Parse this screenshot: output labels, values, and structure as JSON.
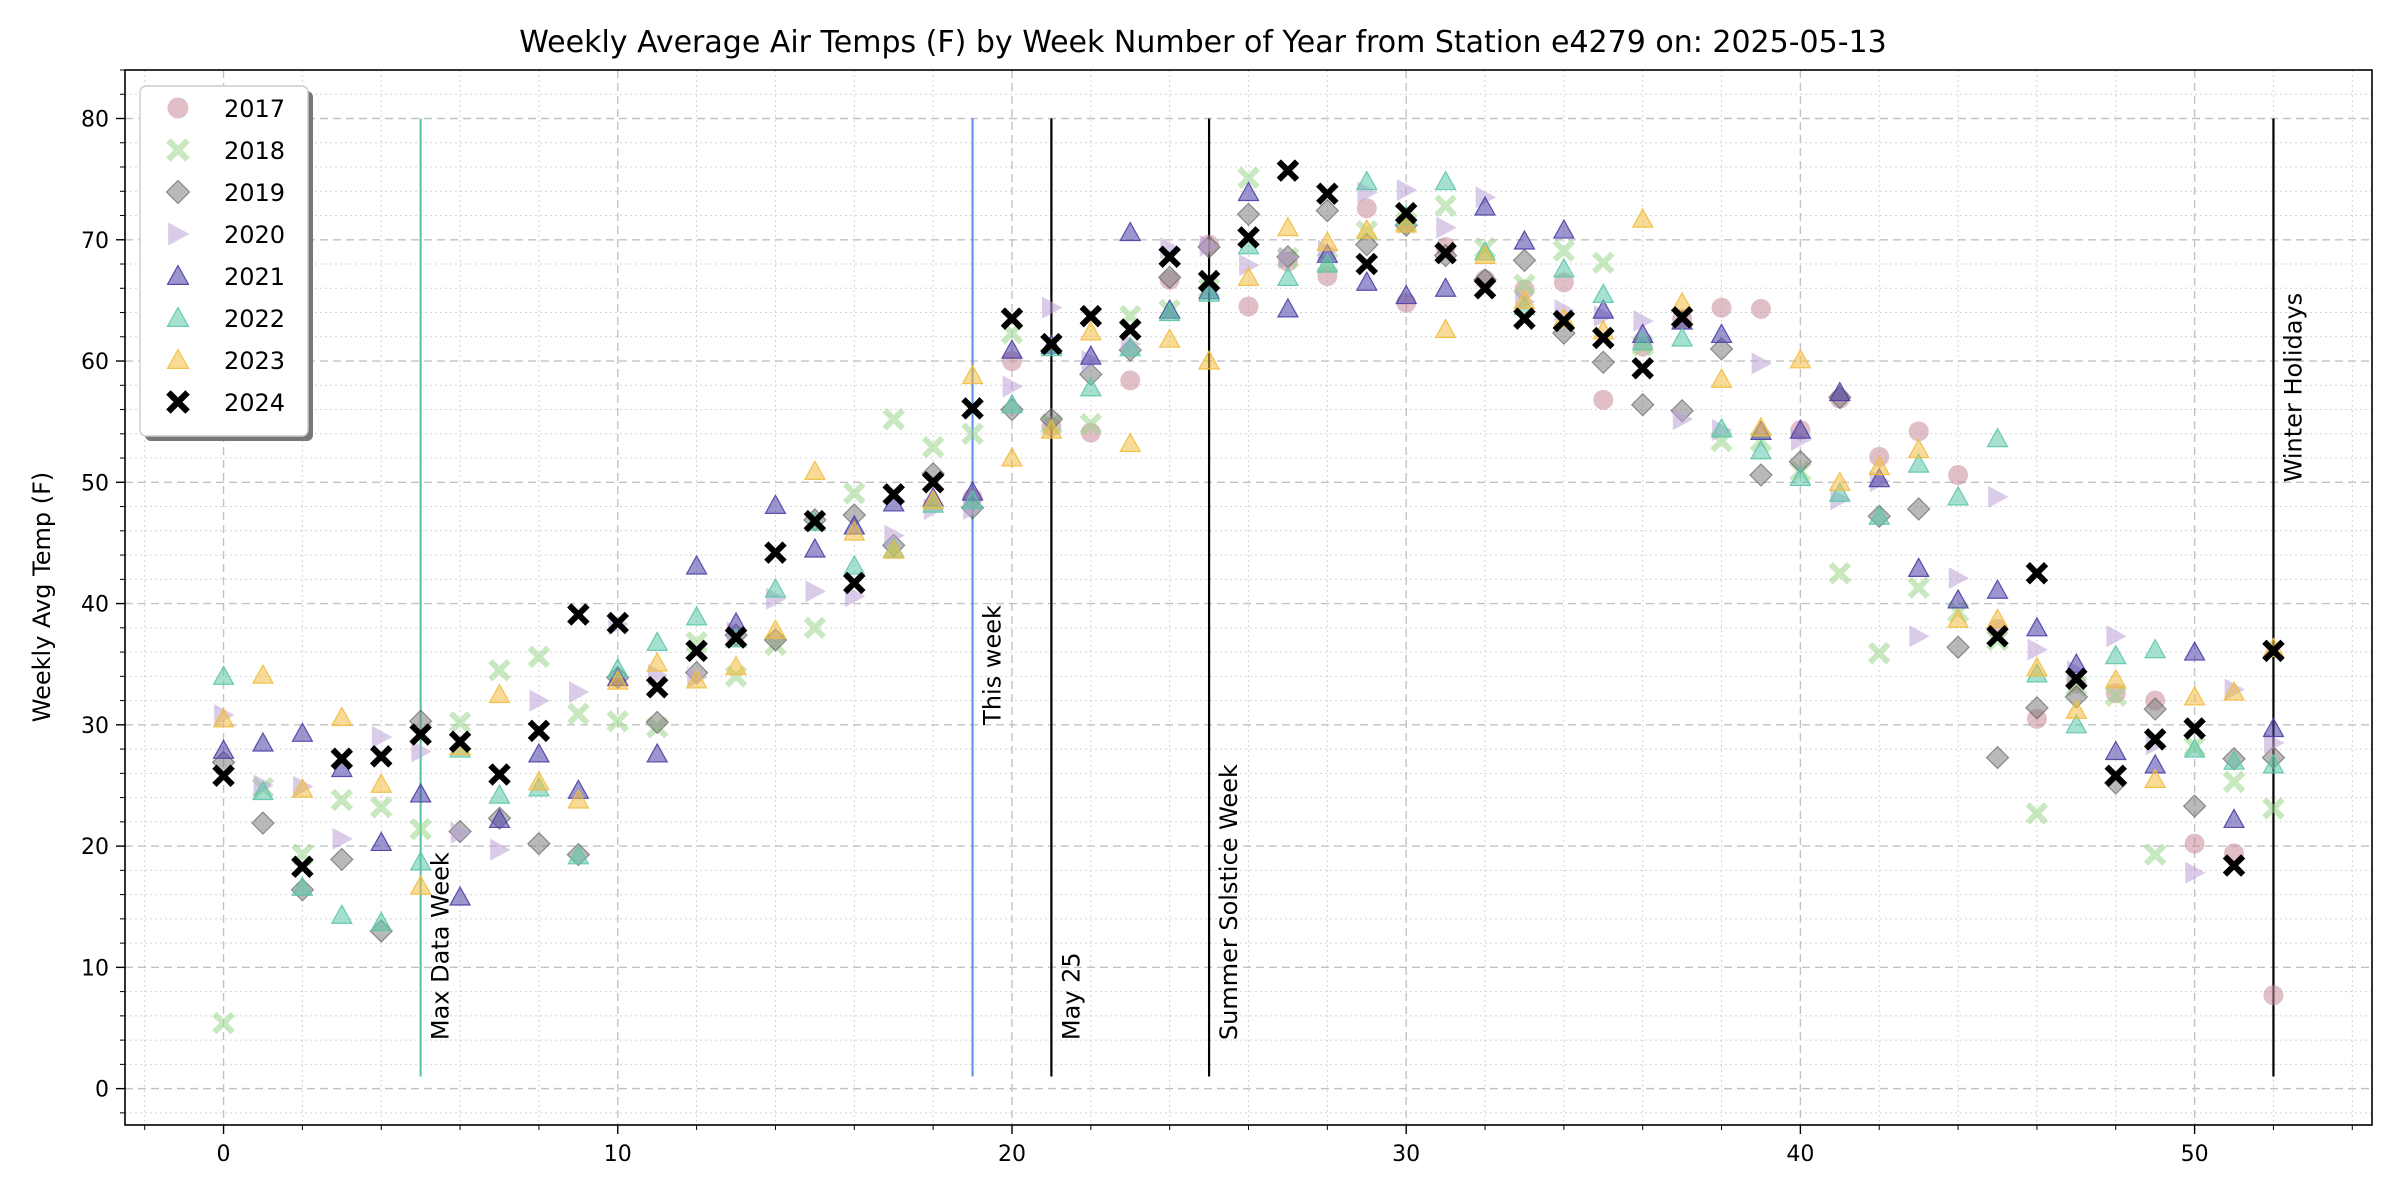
{
  "chart_data": {
    "type": "scatter",
    "title": "Weekly Average Air Temps (F) by Week Number of Year from Station e4279 on: 2025-05-13",
    "xlabel": "",
    "ylabel": "Weekly Avg Temp (F)",
    "xlim": [
      -2.5,
      54.5
    ],
    "ylim": [
      -3,
      84
    ],
    "xticks": [
      0,
      10,
      20,
      30,
      40,
      50
    ],
    "yticks": [
      0,
      10,
      20,
      30,
      40,
      50,
      60,
      70,
      80
    ],
    "grid": true,
    "legend_position": "upper-left",
    "series": [
      {
        "name": "2017",
        "marker": "circle",
        "color": "#c98a97",
        "x": [
          19,
          20,
          21,
          22,
          23,
          24,
          25,
          26,
          27,
          28,
          29,
          30,
          31,
          32,
          33,
          34,
          35,
          36,
          37,
          38,
          39,
          40,
          41,
          42,
          43,
          44,
          45,
          46,
          47,
          48,
          49,
          50,
          51,
          52
        ],
        "y": [
          48.7,
          60.0,
          54.6,
          54.1,
          58.4,
          66.7,
          69.6,
          64.5,
          68.2,
          67.0,
          72.6,
          64.8,
          69.4,
          66.7,
          65.9,
          66.5,
          56.8,
          61.2,
          63.5,
          64.4,
          64.3,
          54.3,
          56.9,
          52.1,
          54.2,
          50.6,
          37.9,
          30.5,
          33.4,
          32.6,
          32.0,
          20.2,
          19.4,
          7.7
        ]
      },
      {
        "name": "2018",
        "marker": "x",
        "color": "#9bd58a",
        "x": [
          0,
          1,
          2,
          3,
          4,
          5,
          6,
          7,
          8,
          9,
          10,
          11,
          12,
          13,
          14,
          15,
          16,
          17,
          18,
          19,
          20,
          21,
          22,
          23,
          24,
          25,
          26,
          27,
          28,
          29,
          30,
          31,
          32,
          33,
          34,
          35,
          36,
          37,
          38,
          39,
          40,
          41,
          42,
          43,
          44,
          45,
          46,
          47,
          48,
          49,
          50,
          51,
          52
        ],
        "y": [
          5.4,
          24.8,
          19.3,
          23.8,
          23.2,
          21.4,
          30.2,
          34.5,
          35.6,
          30.9,
          30.3,
          29.8,
          36.8,
          34.0,
          36.6,
          38.0,
          49.1,
          55.2,
          52.9,
          54.0,
          62.3,
          54.8,
          54.8,
          63.7,
          64.2,
          66.0,
          75.1,
          68.5,
          68.1,
          70.7,
          71.4,
          72.8,
          69.3,
          66.3,
          69.1,
          68.1,
          61.3,
          63.6,
          53.4,
          53.4,
          50.9,
          42.5,
          35.9,
          41.3,
          39.3,
          37.0,
          22.7,
          33.2,
          32.4,
          19.3,
          28.2,
          25.3,
          23.1
        ]
      },
      {
        "name": "2019",
        "marker": "diamond",
        "color": "#7f7f7f",
        "x": [
          0,
          1,
          2,
          3,
          4,
          5,
          6,
          7,
          8,
          9,
          10,
          11,
          12,
          13,
          14,
          15,
          16,
          17,
          18,
          19,
          20,
          21,
          22,
          23,
          24,
          25,
          26,
          27,
          28,
          29,
          30,
          31,
          32,
          33,
          34,
          35,
          36,
          37,
          38,
          39,
          40,
          41,
          42,
          43,
          44,
          45,
          46,
          47,
          48,
          49,
          50,
          51,
          52
        ],
        "y": [
          26.9,
          21.9,
          16.4,
          18.9,
          13.0,
          30.3,
          21.2,
          22.3,
          20.2,
          19.3,
          33.9,
          30.2,
          34.3,
          37.4,
          37.0,
          46.9,
          47.3,
          44.8,
          50.7,
          47.9,
          56.0,
          55.2,
          58.9,
          60.9,
          66.9,
          69.4,
          72.1,
          68.6,
          72.4,
          69.6,
          71.2,
          68.7,
          66.7,
          68.3,
          62.3,
          59.9,
          56.4,
          55.9,
          61.0,
          50.6,
          51.7,
          57.0,
          47.2,
          47.8,
          36.4,
          27.3,
          31.4,
          32.3,
          25.2,
          31.3,
          23.3,
          27.2,
          27.3
        ]
      },
      {
        "name": "2020",
        "marker": "triangle-right",
        "color": "#bba1d6",
        "x": [
          0,
          1,
          2,
          3,
          4,
          5,
          6,
          7,
          8,
          9,
          10,
          11,
          12,
          13,
          14,
          15,
          16,
          17,
          18,
          19,
          20,
          21,
          22,
          23,
          24,
          25,
          26,
          27,
          28,
          29,
          30,
          31,
          32,
          33,
          34,
          35,
          36,
          37,
          38,
          39,
          40,
          41,
          42,
          43,
          44,
          45,
          46,
          47,
          48,
          49,
          50,
          51,
          52
        ],
        "y": [
          30.8,
          25.0,
          24.9,
          20.6,
          29.0,
          27.8,
          21.1,
          19.7,
          32.0,
          32.7,
          38.3,
          34.1,
          33.9,
          37.6,
          40.4,
          41.0,
          40.6,
          45.6,
          47.8,
          47.8,
          57.9,
          64.4,
          60.0,
          61.4,
          69.3,
          69.5,
          67.9,
          68.5,
          69.1,
          73.9,
          74.1,
          71.0,
          73.5,
          64.9,
          64.2,
          63.7,
          63.3,
          55.2,
          54.3,
          59.8,
          53.5,
          48.6,
          50.1,
          37.3,
          42.1,
          48.8,
          36.2,
          34.4,
          37.3,
          28.4,
          17.8,
          32.9,
          28.5
        ]
      },
      {
        "name": "2021",
        "marker": "triangle-up",
        "color": "#4b3fa5",
        "x": [
          0,
          1,
          2,
          3,
          4,
          5,
          6,
          7,
          8,
          9,
          10,
          11,
          12,
          13,
          14,
          15,
          16,
          17,
          18,
          19,
          20,
          21,
          22,
          23,
          24,
          25,
          26,
          27,
          28,
          29,
          30,
          31,
          32,
          33,
          34,
          35,
          36,
          37,
          38,
          39,
          40,
          41,
          42,
          43,
          44,
          45,
          46,
          47,
          48,
          49,
          50,
          51,
          52
        ],
        "y": [
          27.9,
          28.5,
          29.3,
          26.4,
          20.3,
          24.3,
          15.8,
          22.2,
          27.6,
          24.6,
          33.9,
          27.6,
          43.1,
          38.4,
          48.1,
          44.5,
          46.4,
          48.3,
          48.7,
          49.2,
          60.9,
          61.3,
          60.4,
          70.6,
          64.2,
          65.8,
          73.9,
          64.3,
          68.8,
          66.5,
          65.4,
          66.0,
          72.7,
          69.9,
          70.8,
          64.2,
          62.2,
          63.3,
          62.2,
          54.2,
          54.3,
          57.4,
          50.3,
          42.9,
          40.3,
          41.1,
          38.0,
          35.0,
          27.8,
          26.7,
          36.0,
          22.2,
          29.7
        ]
      },
      {
        "name": "2022",
        "marker": "triangle-up",
        "color": "#5cc6aa",
        "x": [
          0,
          1,
          2,
          3,
          4,
          5,
          6,
          7,
          8,
          9,
          10,
          11,
          12,
          13,
          14,
          15,
          16,
          17,
          18,
          19,
          20,
          21,
          22,
          23,
          24,
          25,
          26,
          27,
          28,
          29,
          30,
          31,
          32,
          33,
          34,
          35,
          36,
          37,
          38,
          39,
          40,
          41,
          42,
          43,
          44,
          45,
          46,
          47,
          48,
          49,
          50,
          51,
          52
        ],
        "y": [
          34.0,
          24.5,
          16.6,
          14.3,
          13.7,
          18.7,
          28.0,
          24.2,
          24.8,
          19.2,
          34.6,
          36.8,
          38.9,
          37.1,
          41.2,
          46.7,
          43.1,
          44.5,
          48.2,
          48.5,
          56.4,
          61.1,
          57.8,
          61.1,
          64.0,
          65.6,
          69.5,
          66.9,
          68.0,
          74.8,
          71.9,
          74.8,
          69.0,
          64.5,
          67.6,
          65.5,
          61.6,
          61.9,
          54.4,
          52.6,
          50.4,
          49.1,
          47.2,
          51.5,
          48.8,
          53.6,
          34.2,
          30.0,
          35.7,
          36.2,
          28.0,
          27.0,
          26.7
        ]
      },
      {
        "name": "2023",
        "marker": "triangle-up",
        "color": "#f2bd3f",
        "x": [
          0,
          1,
          2,
          3,
          4,
          5,
          6,
          7,
          8,
          9,
          10,
          11,
          12,
          13,
          14,
          15,
          16,
          17,
          18,
          19,
          20,
          21,
          22,
          23,
          24,
          25,
          26,
          27,
          28,
          29,
          30,
          31,
          32,
          33,
          34,
          35,
          36,
          37,
          38,
          39,
          40,
          41,
          42,
          43,
          44,
          45,
          46,
          47,
          48,
          49,
          50,
          51,
          52
        ],
        "y": [
          30.5,
          34.1,
          24.7,
          30.6,
          25.1,
          16.7,
          28.2,
          32.5,
          25.3,
          23.8,
          33.6,
          35.1,
          33.7,
          34.8,
          37.8,
          50.9,
          45.9,
          44.4,
          48.5,
          58.8,
          52.0,
          54.3,
          62.4,
          53.2,
          61.8,
          60.0,
          66.9,
          71.0,
          69.8,
          70.8,
          71.3,
          62.6,
          68.7,
          65.0,
          63.5,
          62.5,
          71.7,
          64.8,
          58.5,
          54.5,
          60.1,
          50.0,
          51.3,
          52.7,
          38.7,
          38.7,
          34.7,
          31.2,
          33.7,
          25.5,
          32.3,
          32.7,
          36.3
        ]
      },
      {
        "name": "2024",
        "marker": "x",
        "color": "#000000",
        "x": [
          0,
          2,
          3,
          4,
          5,
          6,
          7,
          8,
          9,
          10,
          11,
          12,
          13,
          14,
          15,
          16,
          17,
          18,
          19,
          20,
          21,
          22,
          23,
          24,
          25,
          26,
          27,
          28,
          29,
          30,
          31,
          32,
          33,
          34,
          35,
          36,
          37,
          45,
          46,
          47,
          48,
          49,
          50,
          51,
          52
        ],
        "y": [
          25.8,
          18.3,
          27.2,
          27.4,
          29.2,
          28.6,
          25.9,
          29.5,
          39.1,
          38.4,
          33.1,
          36.1,
          37.2,
          44.2,
          46.8,
          41.7,
          49.0,
          50.0,
          56.1,
          63.5,
          61.4,
          63.7,
          62.6,
          68.6,
          66.6,
          70.2,
          75.7,
          73.8,
          68.0,
          72.2,
          68.9,
          66.0,
          63.5,
          63.3,
          61.9,
          59.4,
          63.6,
          37.3,
          42.5,
          33.8,
          25.8,
          28.8,
          29.7,
          18.4,
          36.1
        ]
      }
    ],
    "annotations": [
      {
        "x": 5,
        "label": "Max Data Week",
        "color": "#5cc6aa",
        "y_range": [
          1,
          80
        ],
        "label_y": 4
      },
      {
        "x": 19,
        "label": "This week",
        "color": "#6495ed",
        "y_range": [
          1,
          80
        ],
        "label_y": 30
      },
      {
        "x": 21,
        "label": "May 25",
        "color": "#000000",
        "y_range": [
          1,
          80
        ],
        "label_y": 4
      },
      {
        "x": 25,
        "label": "Summer Solstice Week",
        "color": "#000000",
        "y_range": [
          1,
          80
        ],
        "label_y": 4
      },
      {
        "x": 52,
        "label": "Winter Holidays",
        "color": "#000000",
        "y_range": [
          1,
          80
        ],
        "label_y": 50
      }
    ]
  }
}
